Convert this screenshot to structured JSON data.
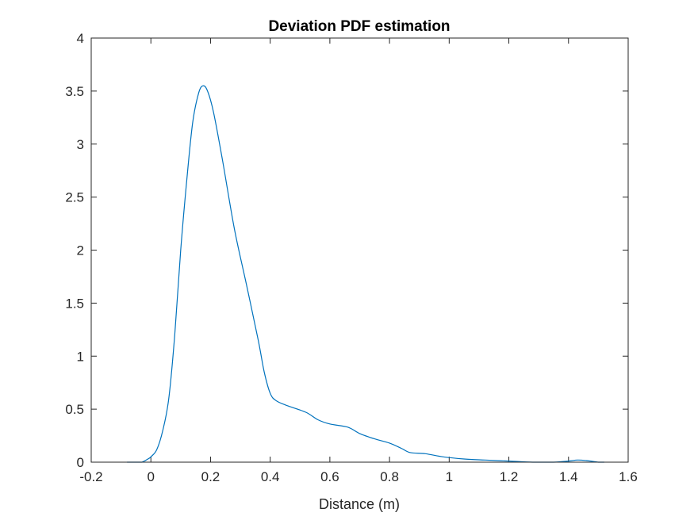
{
  "chart_data": {
    "type": "line",
    "title": "Deviation PDF estimation",
    "xlabel": "Distance (m)",
    "ylabel": "",
    "xlim": [
      -0.2,
      1.6
    ],
    "ylim": [
      0,
      4
    ],
    "xticks": [
      -0.2,
      0,
      0.2,
      0.4,
      0.6,
      0.8,
      1,
      1.2,
      1.4,
      1.6
    ],
    "xtick_labels": [
      "-0.2",
      "0",
      "0.2",
      "0.4",
      "0.6",
      "0.8",
      "1",
      "1.2",
      "1.4",
      "1.6"
    ],
    "yticks": [
      0,
      0.5,
      1,
      1.5,
      2,
      2.5,
      3,
      3.5,
      4
    ],
    "ytick_labels": [
      "0",
      "0.5",
      "1",
      "1.5",
      "2",
      "2.5",
      "3",
      "3.5",
      "4"
    ],
    "grid": false,
    "line_color": "#0072BD",
    "series": [
      {
        "x": [
          -0.08,
          -0.05,
          -0.03,
          -0.01,
          0.0,
          0.02,
          0.04,
          0.06,
          0.08,
          0.1,
          0.12,
          0.14,
          0.16,
          0.175,
          0.19,
          0.21,
          0.24,
          0.28,
          0.32,
          0.36,
          0.38,
          0.4,
          0.42,
          0.46,
          0.52,
          0.56,
          0.6,
          0.66,
          0.7,
          0.75,
          0.8,
          0.84,
          0.87,
          0.92,
          0.98,
          1.05,
          1.12,
          1.2,
          1.28,
          1.35,
          1.4,
          1.43,
          1.46,
          1.5,
          1.52
        ],
        "y": [
          0.0,
          0.0,
          0.0,
          0.03,
          0.05,
          0.12,
          0.3,
          0.6,
          1.2,
          2.0,
          2.65,
          3.2,
          3.48,
          3.55,
          3.5,
          3.3,
          2.85,
          2.2,
          1.68,
          1.15,
          0.85,
          0.65,
          0.58,
          0.53,
          0.47,
          0.4,
          0.36,
          0.33,
          0.27,
          0.22,
          0.18,
          0.13,
          0.09,
          0.08,
          0.05,
          0.03,
          0.02,
          0.01,
          0.0,
          0.0,
          0.01,
          0.02,
          0.015,
          0.0,
          0.0
        ]
      }
    ]
  }
}
